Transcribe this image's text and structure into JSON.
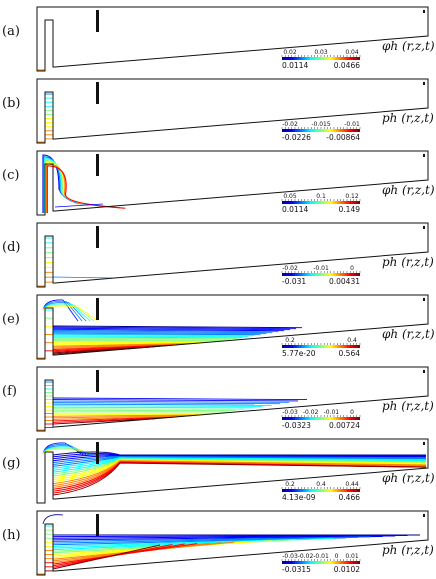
{
  "figure": {
    "panels": [
      {
        "label": "(a)",
        "field": "phi",
        "equation": "φh (r,z,t)",
        "min": "0.0114",
        "max": "0.0466",
        "ticks": [
          "0.02",
          "0.03",
          "0.04"
        ],
        "profile": "a"
      },
      {
        "label": "(b)",
        "field": "p",
        "equation": "ph (r,z,t)",
        "min": "-0.0226",
        "max": "-0.00864",
        "ticks": [
          "-0.02",
          "-0.015",
          "-0.01"
        ],
        "profile": "b"
      },
      {
        "label": "(c)",
        "field": "phi",
        "equation": "φh (r,z,t)",
        "min": "0.0114",
        "max": "0.149",
        "ticks": [
          "0.05",
          "0.1",
          "0.12"
        ],
        "profile": "c"
      },
      {
        "label": "(d)",
        "field": "p",
        "equation": "ph (r,z,t)",
        "min": "-0.031",
        "max": "0.00431",
        "ticks": [
          "-0.02",
          "-0.01",
          "0"
        ],
        "profile": "d"
      },
      {
        "label": "(e)",
        "field": "phi",
        "equation": "φh (r,z,t)",
        "min": "5.77e-20",
        "max": "0.564",
        "ticks": [
          "0.2",
          "0.4"
        ],
        "profile": "e"
      },
      {
        "label": "(f)",
        "field": "p",
        "equation": "ph (r,z,t)",
        "min": "-0.0323",
        "max": "0.00724",
        "ticks": [
          "-0.03",
          "-0.02",
          "-0.01",
          "0"
        ],
        "profile": "f"
      },
      {
        "label": "(g)",
        "field": "phi",
        "equation": "φh (r,z,t)",
        "min": "4.13e-09",
        "max": "0.466",
        "ticks": [
          "0.2",
          "0.4",
          "0.44"
        ],
        "profile": "g"
      },
      {
        "label": "(h)",
        "field": "p",
        "equation": "ph (r,z,t)",
        "min": "-0.0315",
        "max": "0.0102",
        "ticks": [
          "-0.03",
          "-0.02",
          "-0.01",
          "0",
          "0.01"
        ],
        "profile": "h"
      }
    ]
  },
  "colors": {
    "jet": [
      "#00008f",
      "#0000ff",
      "#0080ff",
      "#00ffff",
      "#80ff80",
      "#ffff00",
      "#ff8000",
      "#ff0000",
      "#800000"
    ],
    "outline": "#111111"
  }
}
